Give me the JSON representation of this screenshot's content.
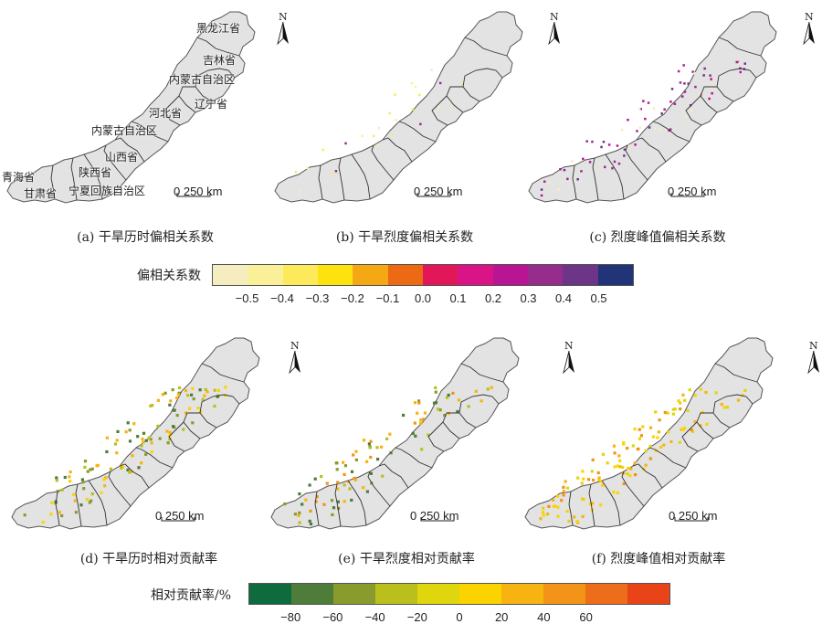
{
  "panels": [
    {
      "id": "a",
      "caption": "(a) 干旱历时偏相关系数",
      "scale": "0    250 km",
      "north": "N",
      "type": "partial"
    },
    {
      "id": "b",
      "caption": "(b) 干旱烈度偏相关系数",
      "scale": "0    250 km",
      "north": "N",
      "type": "partial"
    },
    {
      "id": "c",
      "caption": "(c) 烈度峰值偏相关系数",
      "scale": "0    250 km",
      "north": "N",
      "type": "partial"
    },
    {
      "id": "d",
      "caption": "(d) 干旱历时相对贡献率",
      "scale": "0    250 km",
      "north": "N",
      "type": "contribution"
    },
    {
      "id": "e",
      "caption": "(e) 干旱烈度相对贡献率",
      "scale": "0    250 km",
      "north": "N",
      "type": "contribution"
    },
    {
      "id": "f",
      "caption": "(f) 烈度峰值相对贡献率",
      "scale": "0    250 km",
      "north": "N",
      "type": "contribution"
    }
  ],
  "provinces": {
    "heilongjiang": "黑龙江省",
    "jilin": "吉林省",
    "neimenggu_east": "内蒙古自治区",
    "liaoning": "辽宁省",
    "hebei": "河北省",
    "neimenggu_west": "内蒙古自治区",
    "shanxi": "山西省",
    "shaanxi": "陕西省",
    "qinghai": "青海省",
    "gansu": "甘肃省",
    "ningxia": "宁夏回族自治区"
  },
  "legend_partial": {
    "title": "偏相关系数",
    "colors": [
      "#f5ecc0",
      "#fbf09a",
      "#fcea5a",
      "#fde20e",
      "#f4a814",
      "#ec6a14",
      "#e2175a",
      "#d91486",
      "#b81594",
      "#962d8c",
      "#6d3587",
      "#223478"
    ],
    "ticks": [
      "−0.5",
      "−0.4",
      "−0.3",
      "−0.2",
      "−0.1",
      "0.0",
      "0.1",
      "0.2",
      "0.3",
      "0.4",
      "0.5"
    ]
  },
  "legend_contribution": {
    "title": "相对贡献率/%",
    "colors": [
      "#0d6b3e",
      "#4e7d3a",
      "#8a9b2e",
      "#b9c01b",
      "#dfd60d",
      "#fbd400",
      "#f7b411",
      "#f39317",
      "#ee6d1a",
      "#e84418"
    ],
    "ticks": [
      "−80",
      "−60",
      "−40",
      "−20",
      "0",
      "20",
      "40",
      "60"
    ]
  }
}
